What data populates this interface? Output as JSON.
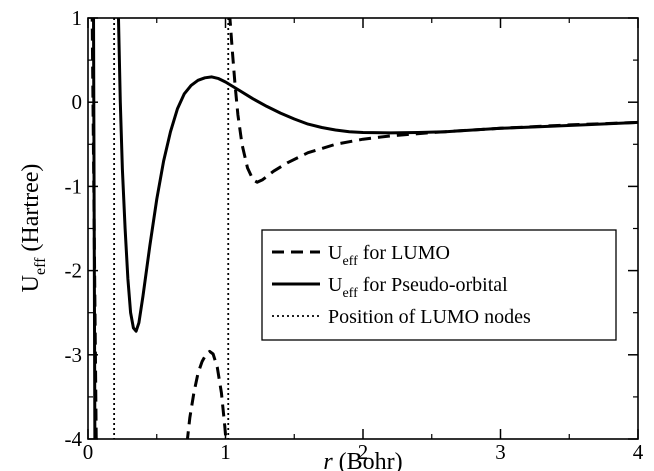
{
  "chart_data": {
    "type": "line",
    "xlabel": {
      "italic": "r",
      "rest": " (Bohr)"
    },
    "ylabel": {
      "main": "U",
      "sub": "eff",
      "rest": " (Hartree)"
    },
    "xlim": [
      0,
      4
    ],
    "ylim": [
      -4,
      1
    ],
    "xticks": [
      0,
      1,
      2,
      3,
      4
    ],
    "yticks": [
      1,
      0,
      -1,
      -2,
      -3,
      -4
    ],
    "legend_position": "center-right",
    "series": [
      {
        "name": {
          "main": "U",
          "sub": "eff",
          "rest": " for LUMO"
        },
        "style": "dashed",
        "segments": [
          [
            [
              0.03,
              1.1
            ],
            [
              0.045,
              -1.5
            ],
            [
              0.06,
              -4.1
            ]
          ],
          [
            [
              0.72,
              -4.05
            ],
            [
              0.74,
              -3.75
            ],
            [
              0.77,
              -3.45
            ],
            [
              0.8,
              -3.22
            ],
            [
              0.83,
              -3.08
            ],
            [
              0.86,
              -2.99
            ],
            [
              0.885,
              -2.96
            ],
            [
              0.91,
              -2.99
            ],
            [
              0.94,
              -3.15
            ],
            [
              0.97,
              -3.45
            ],
            [
              0.995,
              -3.85
            ],
            [
              1.005,
              -4.05
            ]
          ],
          [
            [
              1.03,
              1.05
            ],
            [
              1.05,
              0.6
            ],
            [
              1.07,
              0.2
            ],
            [
              1.09,
              -0.15
            ],
            [
              1.12,
              -0.5
            ],
            [
              1.16,
              -0.78
            ],
            [
              1.2,
              -0.92
            ],
            [
              1.23,
              -0.95
            ],
            [
              1.27,
              -0.92
            ],
            [
              1.35,
              -0.82
            ],
            [
              1.45,
              -0.72
            ],
            [
              1.6,
              -0.6
            ],
            [
              1.8,
              -0.5
            ],
            [
              2.0,
              -0.44
            ],
            [
              2.2,
              -0.4
            ],
            [
              2.5,
              -0.36
            ],
            [
              3.0,
              -0.31
            ],
            [
              3.5,
              -0.27
            ],
            [
              4.0,
              -0.24
            ]
          ]
        ]
      },
      {
        "name": {
          "main": "U",
          "sub": "eff",
          "rest": " for Pseudo-orbital"
        },
        "style": "solid",
        "segments": [
          [
            [
              0.04,
              1.1
            ],
            [
              0.045,
              -1.5
            ],
            [
              0.05,
              -4.1
            ]
          ],
          [
            [
              0.22,
              1.1
            ],
            [
              0.235,
              0.0
            ],
            [
              0.25,
              -0.8
            ],
            [
              0.27,
              -1.5
            ],
            [
              0.29,
              -2.1
            ],
            [
              0.31,
              -2.5
            ],
            [
              0.33,
              -2.68
            ],
            [
              0.35,
              -2.72
            ],
            [
              0.37,
              -2.62
            ],
            [
              0.4,
              -2.3
            ],
            [
              0.45,
              -1.7
            ],
            [
              0.5,
              -1.15
            ],
            [
              0.55,
              -0.7
            ],
            [
              0.6,
              -0.35
            ],
            [
              0.65,
              -0.08
            ],
            [
              0.7,
              0.1
            ],
            [
              0.75,
              0.2
            ],
            [
              0.8,
              0.26
            ],
            [
              0.85,
              0.29
            ],
            [
              0.9,
              0.3
            ],
            [
              0.95,
              0.28
            ],
            [
              1.0,
              0.24
            ],
            [
              1.1,
              0.14
            ],
            [
              1.2,
              0.04
            ],
            [
              1.3,
              -0.05
            ],
            [
              1.4,
              -0.13
            ],
            [
              1.5,
              -0.2
            ],
            [
              1.6,
              -0.26
            ],
            [
              1.7,
              -0.3
            ],
            [
              1.8,
              -0.33
            ],
            [
              1.9,
              -0.35
            ],
            [
              2.0,
              -0.36
            ],
            [
              2.2,
              -0.365
            ],
            [
              2.4,
              -0.36
            ],
            [
              2.6,
              -0.35
            ],
            [
              2.8,
              -0.33
            ],
            [
              3.0,
              -0.31
            ],
            [
              3.3,
              -0.29
            ],
            [
              3.6,
              -0.27
            ],
            [
              4.0,
              -0.24
            ]
          ]
        ]
      },
      {
        "name": {
          "main": "Position of LUMO nodes",
          "sub": "",
          "rest": ""
        },
        "style": "dotted",
        "vlines": [
          0.19,
          1.02
        ]
      }
    ]
  }
}
